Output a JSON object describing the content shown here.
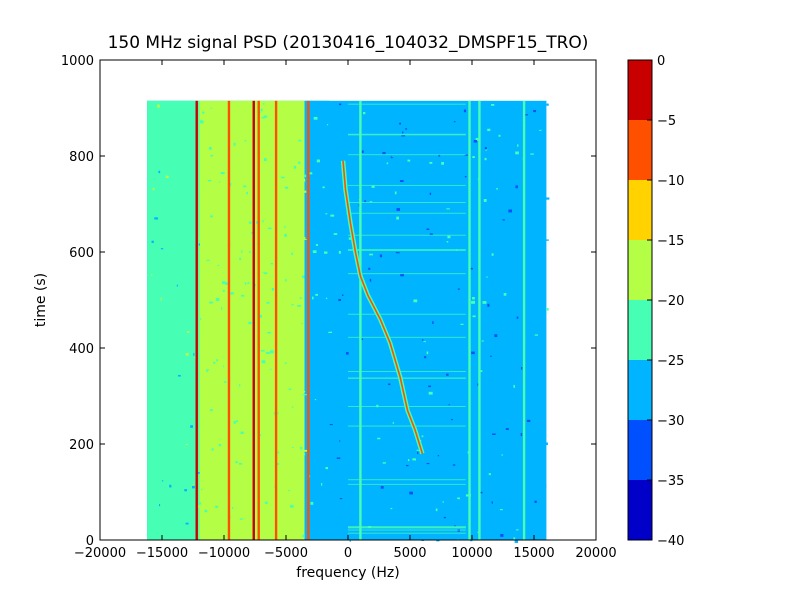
{
  "chart_data": {
    "type": "heatmap",
    "title": "150 MHz signal PSD (20130416_104032_DMSPF15_TRO)",
    "xlabel": "frequency (Hz)",
    "ylabel": "time (s)",
    "xlim": [
      -20000,
      20000
    ],
    "ylim": [
      0,
      1000
    ],
    "xticks": [
      -20000,
      -15000,
      -10000,
      -5000,
      0,
      5000,
      10000,
      15000,
      20000
    ],
    "yticks": [
      0,
      200,
      400,
      600,
      800,
      1000
    ],
    "data_extent": {
      "x": [
        -16200,
        16000
      ],
      "y": [
        0,
        915
      ]
    },
    "colorbar": {
      "levels": [
        -40,
        -35,
        -30,
        -25,
        -20,
        -15,
        -10,
        -5,
        0
      ],
      "tick_labels": [
        "-40",
        "-35",
        "-30",
        "-25",
        "-20",
        "-15",
        "-10",
        "-5",
        "0"
      ],
      "colors": [
        "#0000c8",
        "#0050ff",
        "#00b4ff",
        "#46ffb4",
        "#b4ff46",
        "#ffd200",
        "#ff5000",
        "#c80000"
      ]
    },
    "background_level_db": -27.5,
    "vertical_bands": [
      {
        "x_from": -16200,
        "x_to": -12000,
        "level_db": -22.5
      },
      {
        "x_from": -12000,
        "x_to": -3500,
        "level_db": -20
      },
      {
        "x_from": -3500,
        "x_to": -1500,
        "level_db": -26
      }
    ],
    "carrier_lines": [
      {
        "x": -12200,
        "level_db": -2.5
      },
      {
        "x": -9600,
        "level_db": -7.5
      },
      {
        "x": -7600,
        "level_db": 0
      },
      {
        "x": -7200,
        "level_db": -7.5
      },
      {
        "x": -5800,
        "level_db": -7.5
      },
      {
        "x": -3200,
        "level_db": -10
      },
      {
        "x": 1000,
        "level_db": -22.5
      },
      {
        "x": 9800,
        "level_db": -22.5
      },
      {
        "x": 10600,
        "level_db": -22.5
      },
      {
        "x": 14200,
        "level_db": -22.5
      }
    ],
    "doppler_trace": {
      "level_db": -10,
      "points": [
        [
          -400,
          790
        ],
        [
          -200,
          730
        ],
        [
          200,
          660
        ],
        [
          600,
          600
        ],
        [
          1000,
          550
        ],
        [
          1600,
          510
        ],
        [
          2600,
          460
        ],
        [
          3400,
          410
        ],
        [
          4200,
          340
        ],
        [
          4800,
          270
        ],
        [
          5400,
          230
        ],
        [
          6000,
          180
        ]
      ]
    }
  }
}
